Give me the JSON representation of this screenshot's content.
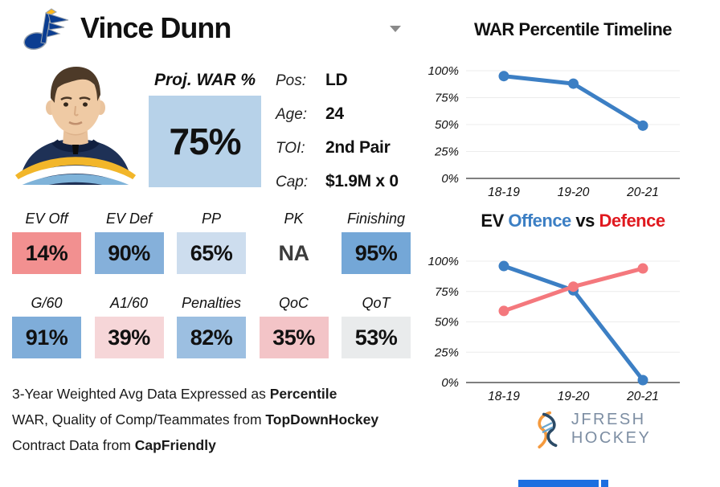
{
  "header": {
    "team": "St. Louis Blues",
    "player_name": "Vince Dunn"
  },
  "proj_war": {
    "label": "Proj. WAR %",
    "value": "75%",
    "box_color": "#b7d2e9"
  },
  "bio": {
    "rows": [
      {
        "label": "Pos:",
        "value": "LD"
      },
      {
        "label": "Age:",
        "value": "24"
      },
      {
        "label": "TOI:",
        "value": "2nd Pair"
      },
      {
        "label": "Cap:",
        "value": "$1.9M x 0"
      }
    ]
  },
  "stats_row1": [
    {
      "label": "EV Off",
      "value": "14%",
      "color": "#f29090"
    },
    {
      "label": "EV Def",
      "value": "90%",
      "color": "#85b0da"
    },
    {
      "label": "PP",
      "value": "65%",
      "color": "#cdddee"
    },
    {
      "label": "PK",
      "value": "NA",
      "color": "transparent"
    },
    {
      "label": "Finishing",
      "value": "95%",
      "color": "#74a7d7"
    }
  ],
  "stats_row2": [
    {
      "label": "G/60",
      "value": "91%",
      "color": "#7fadd9"
    },
    {
      "label": "A1/60",
      "value": "39%",
      "color": "#f6d6d8"
    },
    {
      "label": "Penalties",
      "value": "82%",
      "color": "#9cbfe1"
    },
    {
      "label": "QoC",
      "value": "35%",
      "color": "#f3c4c7"
    },
    {
      "label": "QoT",
      "value": "53%",
      "color": "#e9ebec"
    }
  ],
  "footnotes": [
    {
      "normal": "3-Year Weighted Avg Data Expressed as ",
      "bold": "Percentile"
    },
    {
      "normal": "WAR, Quality of Comp/Teammates from ",
      "bold": "TopDownHockey"
    },
    {
      "normal": "Contract Data from ",
      "bold": "CapFriendly"
    }
  ],
  "chart_data": [
    {
      "type": "line",
      "title": "WAR Percentile Timeline",
      "categories": [
        "18-19",
        "19-20",
        "20-21"
      ],
      "series": [
        {
          "name": "WAR Percentile",
          "color": "#3c7fc4",
          "values": [
            95,
            88,
            49
          ]
        }
      ],
      "ylim": [
        0,
        100
      ],
      "yticks": [
        "0%",
        "25%",
        "50%",
        "75%",
        "100%"
      ],
      "grid": true,
      "legend": "none"
    },
    {
      "type": "line",
      "title_parts": [
        {
          "text": "EV ",
          "color": "#111111"
        },
        {
          "text": "Offence",
          "color": "#3c7fc4"
        },
        {
          "text": " vs ",
          "color": "#111111"
        },
        {
          "text": "Defence",
          "color": "#e0191f"
        }
      ],
      "categories": [
        "18-19",
        "19-20",
        "20-21"
      ],
      "series": [
        {
          "name": "Offence",
          "color": "#3c7fc4",
          "values": [
            96,
            76,
            2
          ]
        },
        {
          "name": "Defence",
          "color": "#f4787d",
          "values": [
            59,
            79,
            94
          ]
        }
      ],
      "ylim": [
        0,
        100
      ],
      "yticks": [
        "0%",
        "25%",
        "50%",
        "75%",
        "100%"
      ],
      "grid": true,
      "legend": "none"
    }
  ],
  "branding": {
    "logo_text": "JFRESH HOCKEY"
  }
}
